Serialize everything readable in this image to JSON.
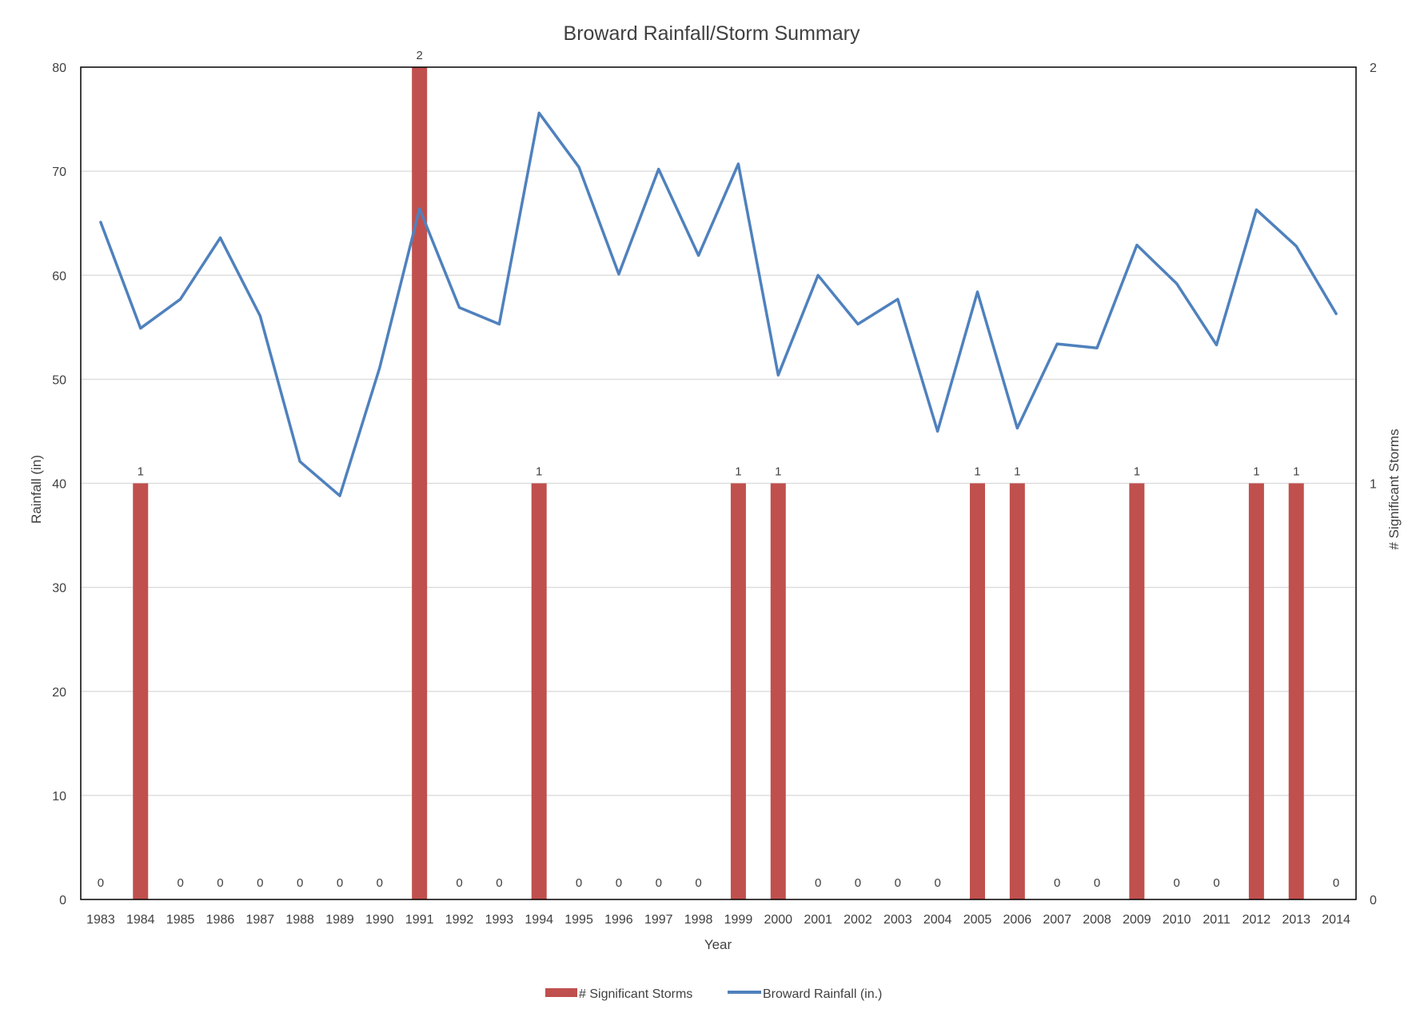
{
  "chart_data": {
    "type": "bar+line",
    "title": "Broward Rainfall/Storm Summary",
    "xlabel": "Year",
    "ylabel_left": "Rainfall (in)",
    "ylabel_right": "# Significant Storms",
    "ylim_left": [
      0,
      80
    ],
    "yticks_left": [
      0,
      10,
      20,
      30,
      40,
      50,
      60,
      70,
      80
    ],
    "ylim_right": [
      0,
      2
    ],
    "yticks_right": [
      0,
      1,
      2
    ],
    "grid": true,
    "legend_position": "bottom",
    "categories": [
      "1983",
      "1984",
      "1985",
      "1986",
      "1987",
      "1988",
      "1989",
      "1990",
      "1991",
      "1992",
      "1993",
      "1994",
      "1995",
      "1996",
      "1997",
      "1998",
      "1999",
      "2000",
      "2001",
      "2002",
      "2003",
      "2004",
      "2005",
      "2006",
      "2007",
      "2008",
      "2009",
      "2010",
      "2011",
      "2012",
      "2013",
      "2014"
    ],
    "series": [
      {
        "name": "# Significant Storms",
        "type": "bar",
        "axis": "right",
        "color": "#C0504D",
        "values": [
          0,
          1,
          0,
          0,
          0,
          0,
          0,
          0,
          2,
          0,
          0,
          1,
          0,
          0,
          0,
          0,
          1,
          1,
          0,
          0,
          0,
          0,
          1,
          1,
          0,
          0,
          1,
          0,
          0,
          1,
          1,
          0
        ]
      },
      {
        "name": "Broward Rainfall (in.)",
        "type": "line",
        "axis": "left",
        "color": "#4F81BD",
        "values": [
          65.1,
          54.9,
          57.7,
          63.6,
          56.1,
          42.1,
          38.8,
          51.1,
          66.4,
          56.9,
          55.3,
          75.6,
          70.4,
          60.1,
          70.2,
          61.9,
          70.7,
          50.4,
          60.0,
          55.3,
          57.7,
          45.0,
          58.4,
          45.3,
          53.4,
          53.0,
          62.9,
          59.2,
          53.3,
          66.3,
          62.8,
          56.3
        ]
      }
    ]
  }
}
